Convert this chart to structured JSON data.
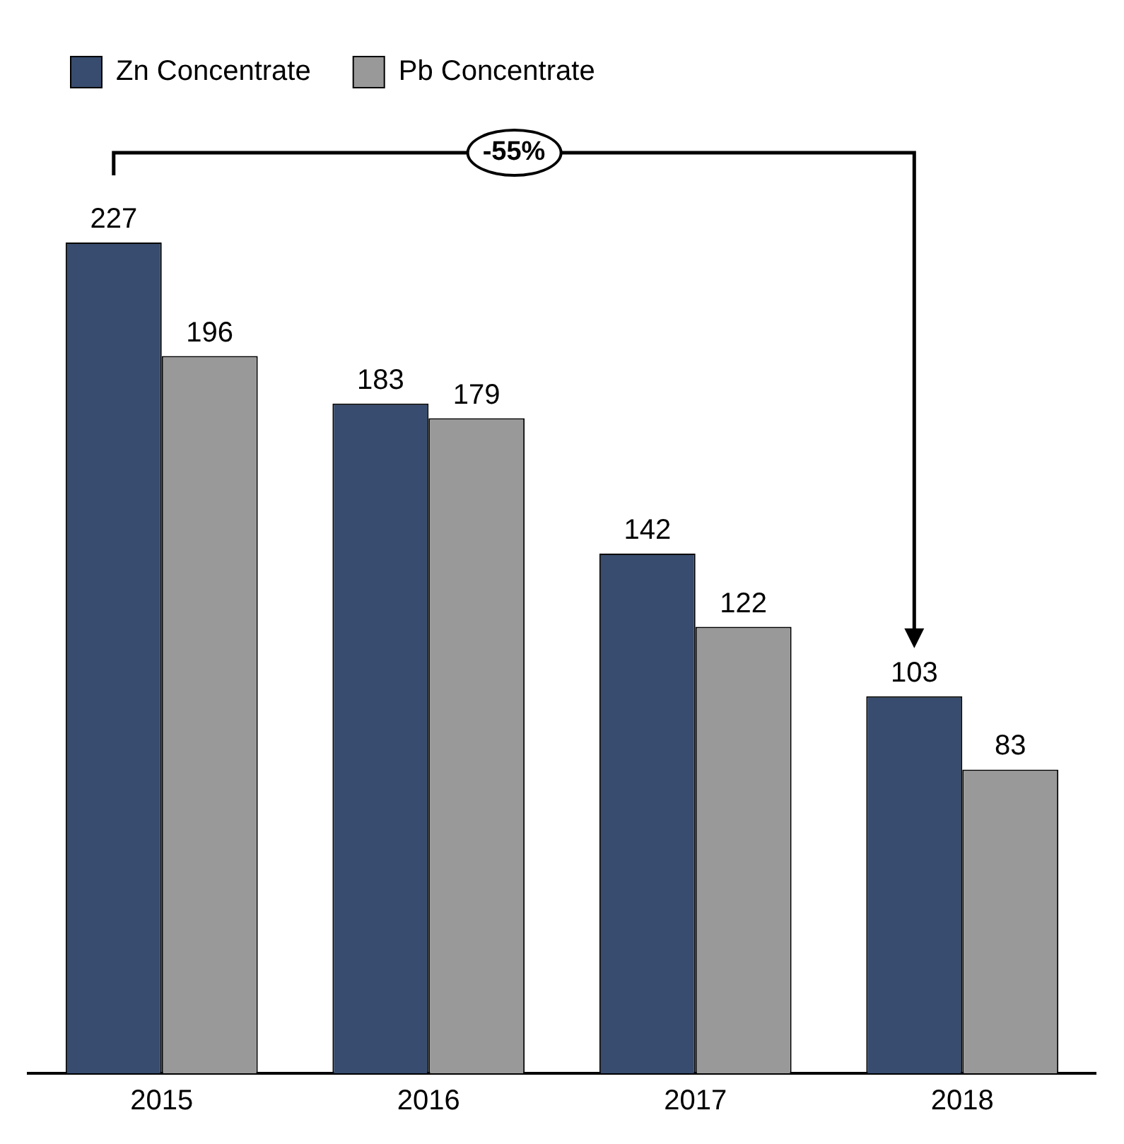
{
  "chart_data": {
    "type": "bar",
    "categories": [
      "2015",
      "2016",
      "2017",
      "2018"
    ],
    "series": [
      {
        "name": "Zn Concentrate",
        "color": "#374c6e",
        "values": [
          227,
          183,
          142,
          103
        ]
      },
      {
        "name": "Pb Concentrate",
        "color": "#999999",
        "values": [
          196,
          179,
          122,
          83
        ]
      }
    ],
    "data_labels": true,
    "legend": "top left",
    "grid": false,
    "annotations": [
      "-55%"
    ]
  }
}
